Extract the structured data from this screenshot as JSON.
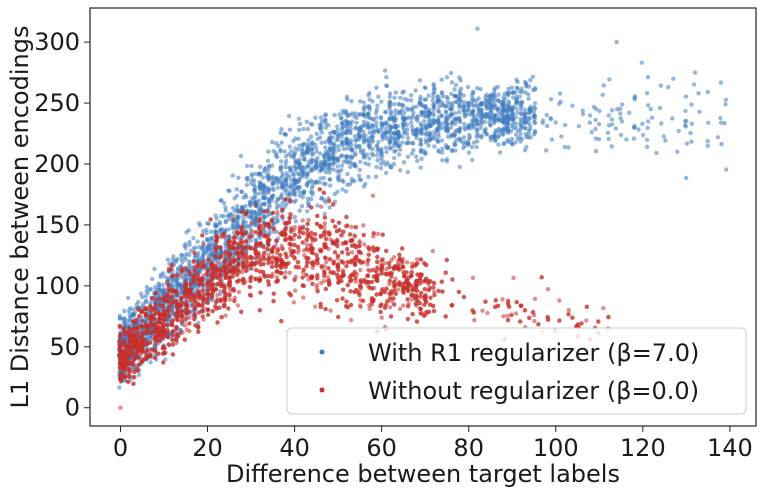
{
  "chart_data": {
    "type": "scatter",
    "title": "",
    "xlabel": "Difference between target labels",
    "ylabel": "L1 Distance between encodings",
    "xlim": [
      -7,
      146
    ],
    "ylim": [
      -15,
      328
    ],
    "xticks": [
      0,
      20,
      40,
      60,
      80,
      100,
      120,
      140
    ],
    "yticks": [
      0,
      50,
      100,
      150,
      200,
      250,
      300
    ],
    "grid": false,
    "legend_position": "lower-right",
    "series": [
      {
        "name": "With R1 regularizer (β=7.0)",
        "color": "#3f7bbf",
        "trend": {
          "x": [
            0,
            10,
            20,
            30,
            40,
            50,
            60,
            70,
            80,
            90,
            100,
            110,
            120,
            130,
            140
          ],
          "y_center": [
            45,
            82,
            122,
            160,
            192,
            215,
            228,
            235,
            238,
            240,
            240,
            241,
            242,
            243,
            244
          ],
          "spread": [
            20,
            27,
            30,
            32,
            32,
            30,
            28,
            26,
            25,
            25,
            24,
            25,
            27,
            30,
            32
          ]
        },
        "x_max_dense": 95,
        "x_max": 139,
        "y_max": 311,
        "point_count": 3000,
        "sample_points": [
          [
            82,
            311
          ],
          [
            114,
            300
          ],
          [
            132,
            275
          ],
          [
            127,
            270
          ],
          [
            139,
            249
          ],
          [
            118,
            230
          ],
          [
            121,
            214
          ]
        ]
      },
      {
        "name": "Without regularizer (β=0.0)",
        "color": "#c9302c",
        "trend": {
          "x": [
            0,
            10,
            20,
            30,
            40,
            50,
            60,
            70,
            80,
            90,
            100,
            110
          ],
          "y_center": [
            40,
            74,
            104,
            125,
            130,
            120,
            106,
            97,
            90,
            82,
            76,
            70
          ],
          "spread": [
            18,
            24,
            28,
            30,
            32,
            32,
            28,
            26,
            24,
            22,
            18,
            16
          ]
        },
        "x_max_dense": 72,
        "x_max": 112,
        "y_max": 180,
        "point_count": 2600,
        "sample_points": [
          [
            0,
            0
          ],
          [
            88,
            75
          ],
          [
            95,
            76
          ],
          [
            112,
            65
          ],
          [
            103,
            80
          ],
          [
            58,
            174
          ]
        ]
      }
    ]
  }
}
